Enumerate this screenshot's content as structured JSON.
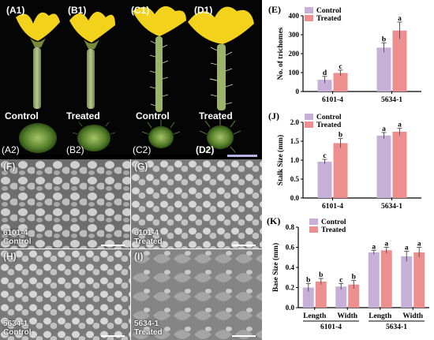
{
  "figure": {
    "photo_labels": {
      "a1": "(A1)",
      "b1": "(B1)",
      "c1": "(C1)",
      "d1": "(D1)",
      "a2": "(A2)",
      "b2": "(B2)",
      "c2": "(C2)",
      "d2": "(D2)",
      "control_left": "Control",
      "treated_left": "Treated",
      "control_right": "Control",
      "treated_right": "Treated"
    },
    "sem": [
      {
        "panel": "(F)",
        "caption1": "6101-4",
        "caption2": "Control"
      },
      {
        "panel": "(G)",
        "caption1": "6101-4",
        "caption2": "Treated"
      },
      {
        "panel": "(H)",
        "caption1": "5634-1",
        "caption2": "Control"
      },
      {
        "panel": "(I)",
        "caption1": "5634-1",
        "caption2": "Treated"
      }
    ],
    "colors": {
      "control": "#c6b0d8",
      "treated": "#ee8f8f",
      "scale_bar": "#b8b4ea"
    }
  },
  "chart_data": [
    {
      "panel": "(E)",
      "type": "bar",
      "categories": [
        "6101-4",
        "5634-1"
      ],
      "series": [
        {
          "name": "Control",
          "values": [
            62,
            232
          ],
          "errors": [
            18,
            25
          ],
          "letters": [
            "d",
            "b"
          ]
        },
        {
          "name": "Treated",
          "values": [
            98,
            322
          ],
          "errors": [
            15,
            45
          ],
          "letters": [
            "c",
            "a"
          ]
        }
      ],
      "ylabel": "No. of trichomes",
      "ylim": [
        0,
        400
      ],
      "yticks": [
        0,
        100,
        200,
        300,
        400
      ],
      "legend": "top-left"
    },
    {
      "panel": "(J)",
      "type": "bar",
      "categories": [
        "6101-4",
        "5634-1"
      ],
      "series": [
        {
          "name": "Control",
          "values": [
            0.96,
            1.65
          ],
          "errors": [
            0.06,
            0.08
          ],
          "letters": [
            "c",
            "a"
          ]
        },
        {
          "name": "Treated",
          "values": [
            1.45,
            1.75
          ],
          "errors": [
            0.12,
            0.09
          ],
          "letters": [
            "b",
            "a"
          ]
        }
      ],
      "ylabel": "Stalk Size (mm)",
      "ylim": [
        0,
        2.0
      ],
      "yticks": [
        0,
        0.5,
        1.0,
        1.5,
        2.0
      ],
      "ytick_labels": [
        "0.0",
        "0.5",
        "1.0",
        "1.5",
        "2.0"
      ],
      "legend": "top-left"
    },
    {
      "panel": "(K)",
      "type": "bar",
      "categories": [
        "Length",
        "Width",
        "Length",
        "Width"
      ],
      "groups": [
        "6101-4",
        "5634-1"
      ],
      "series": [
        {
          "name": "Control",
          "values": [
            0.2,
            0.21,
            0.55,
            0.51
          ],
          "errors": [
            0.04,
            0.03,
            0.02,
            0.05
          ],
          "letters": [
            "b",
            "c",
            "a",
            "a"
          ]
        },
        {
          "name": "Treated",
          "values": [
            0.26,
            0.23,
            0.57,
            0.55
          ],
          "errors": [
            0.03,
            0.04,
            0.03,
            0.05
          ],
          "letters": [
            "b",
            "b",
            "a",
            "a"
          ]
        }
      ],
      "ylabel": "Base Size (mm)",
      "ylim": [
        0,
        0.8
      ],
      "yticks": [
        0,
        0.2,
        0.4,
        0.6,
        0.8
      ],
      "ytick_labels": [
        "0.0",
        "0.2",
        "0.4",
        "0.6",
        "0.8"
      ],
      "legend": "top-left"
    }
  ]
}
